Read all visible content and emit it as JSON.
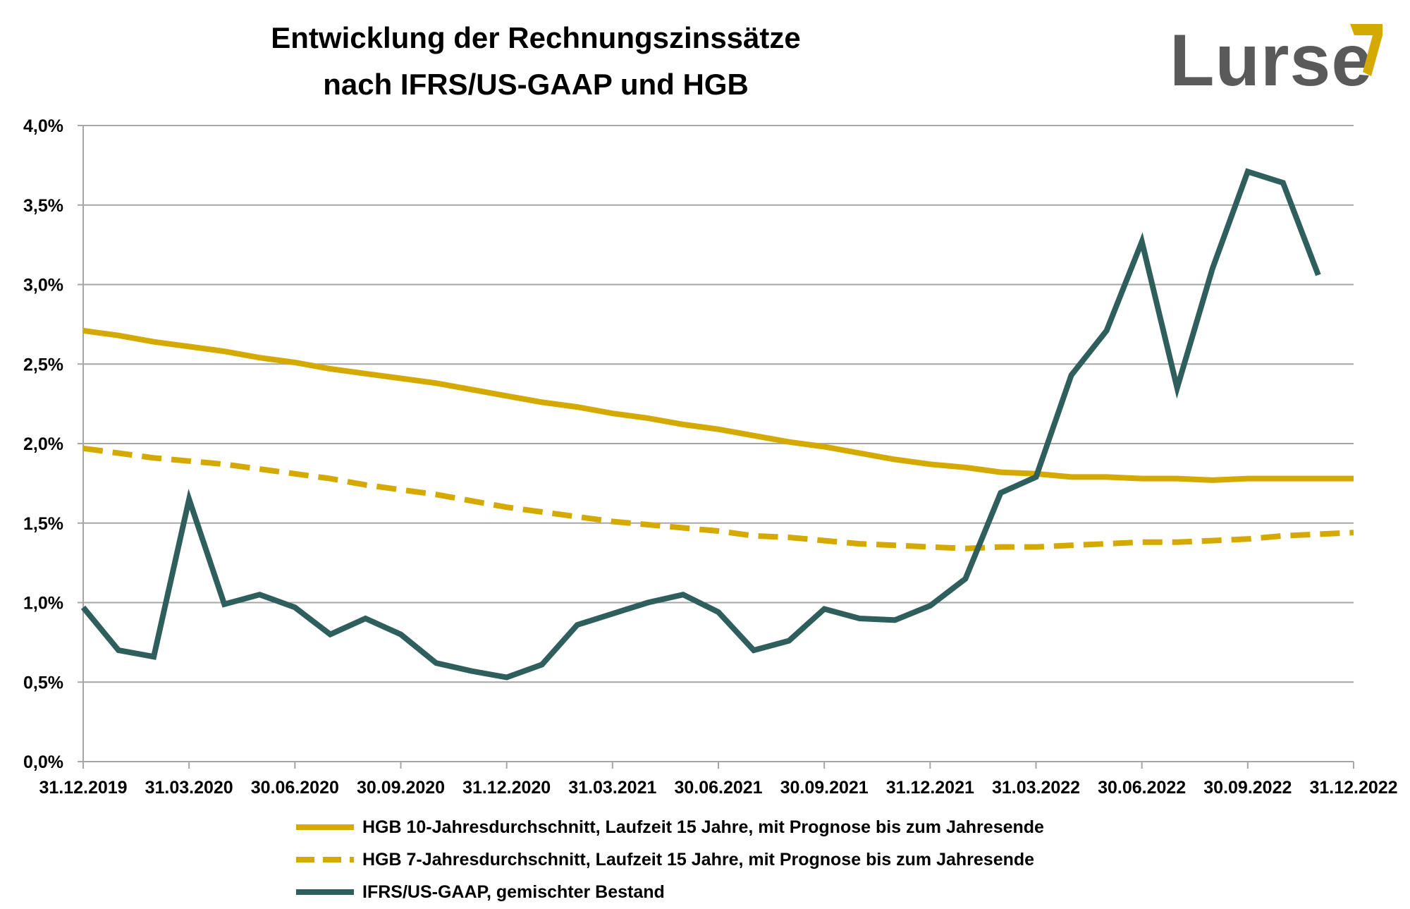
{
  "title_line1": "Entwicklung der Rechnungszinssätze",
  "title_line2": "nach IFRS/US-GAAP und HGB",
  "logo": "Lurse",
  "colors": {
    "gold": "#D4AA00",
    "teal": "#2F5F5D",
    "grid": "#A6A6A6",
    "logo_gray": "#5a5a5a"
  },
  "chart_data": {
    "type": "line",
    "title": "Entwicklung der Rechnungszinssätze nach IFRS/US-GAAP und HGB",
    "xlabel": "",
    "ylabel": "",
    "ylim": [
      0,
      4
    ],
    "grid": true,
    "legend_position": "bottom",
    "x_tick_labels": [
      "31.12.2019",
      "31.03.2020",
      "30.06.2020",
      "30.09.2020",
      "31.12.2020",
      "31.03.2021",
      "30.06.2021",
      "30.09.2021",
      "31.12.2021",
      "31.03.2022",
      "30.06.2022",
      "30.09.2022",
      "31.12.2022"
    ],
    "y_tick_labels": [
      "0,0%",
      "0,5%",
      "1,0%",
      "1,5%",
      "2,0%",
      "2,5%",
      "3,0%",
      "3,5%",
      "4,0%"
    ],
    "x_unit": "months since 31.12.2019",
    "series": [
      {
        "name": "HGB 10-Jahresdurchschnitt, Laufzeit 15 Jahre, mit Prognose bis zum Jahresende",
        "style": "solid",
        "color": "#D4AA00",
        "x": [
          0,
          1,
          2,
          3,
          4,
          5,
          6,
          7,
          8,
          9,
          10,
          11,
          12,
          13,
          14,
          15,
          16,
          17,
          18,
          19,
          20,
          21,
          22,
          23,
          24,
          25,
          26,
          27,
          28,
          29,
          30,
          31,
          32,
          33,
          34,
          35,
          36
        ],
        "y": [
          2.71,
          2.68,
          2.64,
          2.61,
          2.58,
          2.54,
          2.51,
          2.47,
          2.44,
          2.41,
          2.38,
          2.34,
          2.3,
          2.26,
          2.23,
          2.19,
          2.16,
          2.12,
          2.09,
          2.05,
          2.01,
          1.98,
          1.94,
          1.9,
          1.87,
          1.85,
          1.82,
          1.81,
          1.79,
          1.79,
          1.78,
          1.78,
          1.77,
          1.78,
          1.78,
          1.78,
          1.78
        ]
      },
      {
        "name": "HGB 7-Jahresdurchschnitt, Laufzeit 15 Jahre, mit Prognose bis zum Jahresende",
        "style": "dashed",
        "color": "#D4AA00",
        "x": [
          0,
          1,
          2,
          3,
          4,
          5,
          6,
          7,
          8,
          9,
          10,
          11,
          12,
          13,
          14,
          15,
          16,
          17,
          18,
          19,
          20,
          21,
          22,
          23,
          24,
          25,
          26,
          27,
          28,
          29,
          30,
          31,
          32,
          33,
          34,
          35,
          36
        ],
        "y": [
          1.97,
          1.94,
          1.91,
          1.89,
          1.87,
          1.84,
          1.81,
          1.78,
          1.74,
          1.71,
          1.68,
          1.64,
          1.6,
          1.57,
          1.54,
          1.51,
          1.49,
          1.47,
          1.45,
          1.42,
          1.41,
          1.39,
          1.37,
          1.36,
          1.35,
          1.34,
          1.35,
          1.35,
          1.36,
          1.37,
          1.38,
          1.38,
          1.39,
          1.4,
          1.42,
          1.43,
          1.44
        ]
      },
      {
        "name": "IFRS/US-GAAP, gemischter Bestand",
        "style": "solid",
        "color": "#2F5F5D",
        "x": [
          0,
          1,
          2,
          3,
          4,
          5,
          6,
          7,
          8,
          9,
          10,
          11,
          12,
          13,
          14,
          15,
          16,
          17,
          18,
          19,
          20,
          21,
          22,
          23,
          24,
          25,
          26,
          27,
          28,
          29,
          30,
          31,
          32,
          33,
          34,
          35
        ],
        "y": [
          0.97,
          0.7,
          0.66,
          1.65,
          0.99,
          1.05,
          0.97,
          0.8,
          0.9,
          0.8,
          0.62,
          0.57,
          0.53,
          0.61,
          0.86,
          0.93,
          1.0,
          1.05,
          0.94,
          0.7,
          0.76,
          0.96,
          0.9,
          0.89,
          0.98,
          1.15,
          1.69,
          1.79,
          2.43,
          2.71,
          3.27,
          2.35,
          3.1,
          3.71,
          3.64,
          3.06
        ]
      }
    ]
  },
  "legend": [
    {
      "label": "HGB 10-Jahresdurchschnitt, Laufzeit 15 Jahre, mit Prognose bis zum Jahresende",
      "style": "solid",
      "color": "#D4AA00"
    },
    {
      "label": "HGB 7-Jahresdurchschnitt, Laufzeit 15 Jahre, mit Prognose bis zum Jahresende",
      "style": "dashed",
      "color": "#D4AA00"
    },
    {
      "label": "IFRS/US-GAAP, gemischter Bestand",
      "style": "solid",
      "color": "#2F5F5D"
    }
  ]
}
